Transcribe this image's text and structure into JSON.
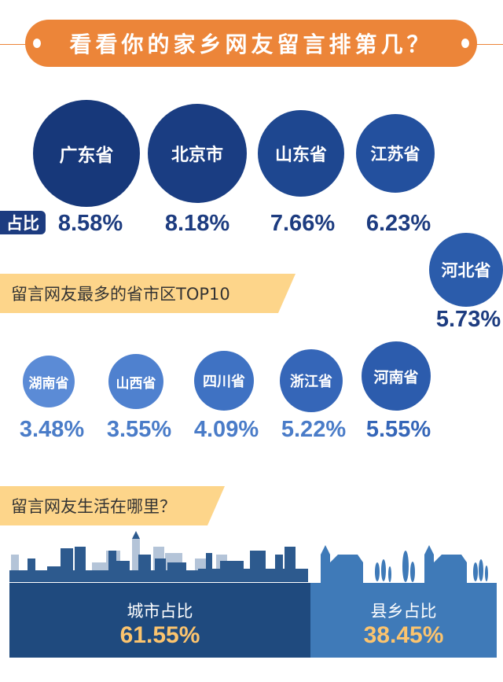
{
  "header": {
    "title": "看看你的家乡网友留言排第几？"
  },
  "section1": {
    "banner": "留言网友最多的省市区TOP10",
    "ratio_label": "占比",
    "top": [
      {
        "name": "广东省",
        "pct": "8.58%"
      },
      {
        "name": "北京市",
        "pct": "8.18%"
      },
      {
        "name": "山东省",
        "pct": "7.66%"
      },
      {
        "name": "江苏省",
        "pct": "6.23%"
      },
      {
        "name": "河北省",
        "pct": "5.73%"
      }
    ],
    "bottom": [
      {
        "name": "湖南省",
        "pct": "3.48%"
      },
      {
        "name": "山西省",
        "pct": "3.55%"
      },
      {
        "name": "四川省",
        "pct": "4.09%"
      },
      {
        "name": "浙江省",
        "pct": "5.22%"
      },
      {
        "name": "河南省",
        "pct": "5.55%"
      }
    ]
  },
  "section2": {
    "banner": "留言网友生活在哪里？",
    "city": {
      "label": "城市占比",
      "pct": "61.55%"
    },
    "county": {
      "label": "县乡占比",
      "pct": "38.45%"
    }
  },
  "colors": {
    "orange": "#ec8539",
    "navy": "#1d3c80",
    "light_blue": "#4a7cc8",
    "gold": "#fcc46e"
  }
}
